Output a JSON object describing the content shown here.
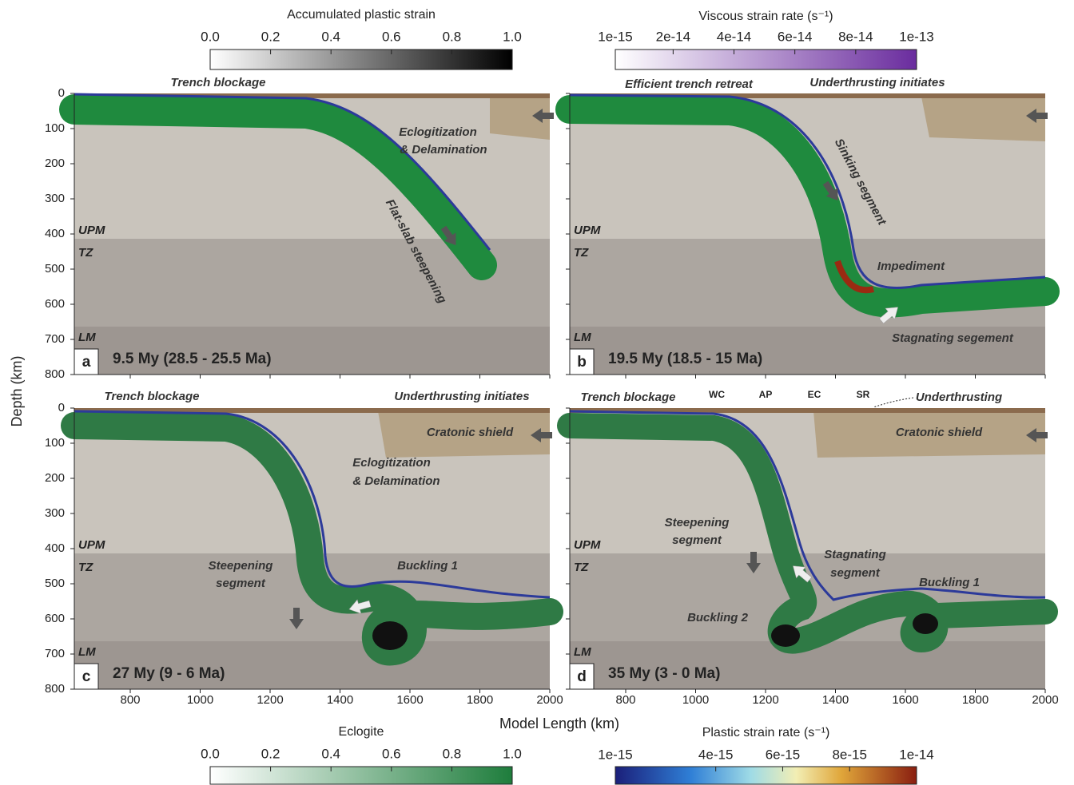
{
  "colorbars": [
    {
      "title": "Accumulated plastic strain",
      "ticks": [
        {
          "value": 0,
          "label": "0.0"
        },
        {
          "value": 0.2,
          "label": "0.2"
        },
        {
          "value": 0.4,
          "label": "0.4"
        },
        {
          "value": 0.6,
          "label": "0.6"
        },
        {
          "value": 0.8,
          "label": "0.8"
        },
        {
          "value": 1,
          "label": "1.0"
        }
      ]
    },
    {
      "title": "Viscous strain rate (s⁻¹)",
      "ticks": [
        {
          "value": 1e-15,
          "label": "1e-15"
        },
        {
          "value": 2e-14,
          "label": "2e-14"
        },
        {
          "value": 4e-14,
          "label": "4e-14"
        },
        {
          "value": 6e-14,
          "label": "6e-14"
        },
        {
          "value": 8e-14,
          "label": "8e-14"
        },
        {
          "value": 1e-13,
          "label": "1e-13"
        }
      ]
    },
    {
      "title": "Eclogite",
      "ticks": [
        {
          "value": 0,
          "label": "0.0"
        },
        {
          "value": 0.2,
          "label": "0.2"
        },
        {
          "value": 0.4,
          "label": "0.4"
        },
        {
          "value": 0.6,
          "label": "0.6"
        },
        {
          "value": 0.8,
          "label": "0.8"
        },
        {
          "value": 1,
          "label": "1.0"
        }
      ]
    },
    {
      "title": "Plastic strain rate (s⁻¹)",
      "ticks": [
        {
          "value": 1e-15,
          "label": "1e-15"
        },
        {
          "value": 4e-15,
          "label": "4e-15"
        },
        {
          "value": 6e-15,
          "label": "6e-15"
        },
        {
          "value": 8e-15,
          "label": "8e-15"
        },
        {
          "value": 1e-14,
          "label": "1e-14"
        }
      ]
    }
  ],
  "axes": {
    "y_label": "Depth (km)",
    "x_label": "Model Length (km)",
    "ylim": [
      0,
      800
    ],
    "yticks": [
      0,
      100,
      200,
      300,
      400,
      500,
      600,
      700,
      800
    ],
    "xlim": [
      640,
      2000
    ],
    "xticks": [
      800,
      1000,
      1200,
      1400,
      1600,
      1800,
      2000
    ]
  },
  "panels": [
    {
      "letter": "a",
      "time": "9.5 My (28.5 - 25.5 Ma)",
      "layers": [
        "UPM",
        "TZ",
        "LM"
      ],
      "annotations": [
        "Trench blockage",
        "Eclogitization",
        "& Delamination",
        "Flat-slab steepening"
      ]
    },
    {
      "letter": "b",
      "time": "19.5 My (18.5 - 15 Ma)",
      "layers": [
        "UPM",
        "TZ",
        "LM"
      ],
      "annotations": [
        "Efficient trench retreat",
        "Underthrusting initiates",
        "Sinking segment",
        "Impediment",
        "Stagnating segement"
      ]
    },
    {
      "letter": "c",
      "time": "27 My (9 - 6 Ma)",
      "layers": [
        "UPM",
        "TZ",
        "LM"
      ],
      "annotations": [
        "Trench blockage",
        "Underthrusting initiates",
        "Cratonic shield",
        "Eclogitization",
        "& Delamination",
        "Steepening",
        "segment",
        "Buckling 1"
      ]
    },
    {
      "letter": "d",
      "time": "35 My (3 - 0 Ma)",
      "layers": [
        "UPM",
        "TZ",
        "LM"
      ],
      "annotations": [
        "Trench blockage",
        "WC",
        "AP",
        "EC",
        "SR",
        "Underthrusting",
        "Cratonic shield",
        "Steepening",
        "segment",
        "Stagnating",
        "segment",
        "Buckling 1",
        "Buckling 2"
      ]
    }
  ]
}
